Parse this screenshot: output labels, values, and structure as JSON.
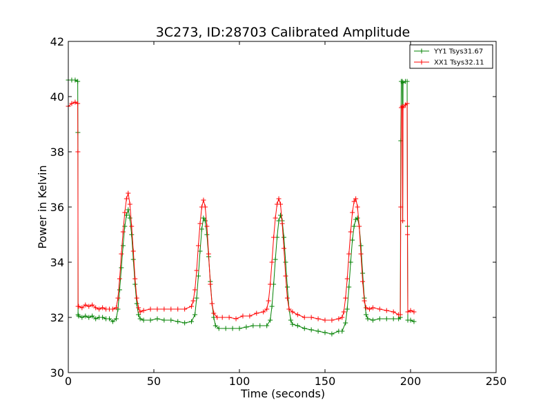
{
  "chart_data": {
    "type": "line",
    "title": "3C273, ID:28703 Calibrated Amplitude",
    "xlabel": "Time (seconds)",
    "ylabel": "Power in Kelvin",
    "xlim": [
      0,
      250
    ],
    "ylim": [
      30,
      42
    ],
    "xticks": [
      "0",
      "50",
      "100",
      "150",
      "200",
      "250"
    ],
    "yticks": [
      "30",
      "32",
      "34",
      "36",
      "38",
      "40",
      "42"
    ],
    "grid": false,
    "legend_position": "top-right",
    "marker": "+",
    "series": [
      {
        "name": "YY1 Tsys31.67",
        "color": "#008000",
        "points": [
          [
            0,
            40.6
          ],
          [
            2,
            40.6
          ],
          [
            4,
            40.6
          ],
          [
            5.5,
            40.55
          ],
          [
            5.6,
            38.7
          ],
          [
            5.7,
            32.1
          ],
          [
            6,
            32.05
          ],
          [
            8,
            32.0
          ],
          [
            10,
            32.05
          ],
          [
            12,
            32.0
          ],
          [
            14,
            32.05
          ],
          [
            16,
            31.95
          ],
          [
            18,
            32.0
          ],
          [
            20,
            32.0
          ],
          [
            22,
            31.95
          ],
          [
            24,
            31.95
          ],
          [
            26,
            31.85
          ],
          [
            28,
            31.95
          ],
          [
            29,
            32.3
          ],
          [
            30,
            33.0
          ],
          [
            31,
            33.8
          ],
          [
            32,
            34.6
          ],
          [
            33,
            35.3
          ],
          [
            34,
            35.7
          ],
          [
            35,
            35.9
          ],
          [
            36,
            35.6
          ],
          [
            37,
            35.0
          ],
          [
            38,
            34.1
          ],
          [
            39,
            33.2
          ],
          [
            40,
            32.5
          ],
          [
            41,
            32.1
          ],
          [
            42,
            31.95
          ],
          [
            44,
            31.9
          ],
          [
            48,
            31.9
          ],
          [
            52,
            31.95
          ],
          [
            56,
            31.9
          ],
          [
            60,
            31.9
          ],
          [
            64,
            31.85
          ],
          [
            68,
            31.8
          ],
          [
            72,
            31.85
          ],
          [
            74,
            32.1
          ],
          [
            75,
            32.7
          ],
          [
            76,
            33.5
          ],
          [
            77,
            34.4
          ],
          [
            78,
            35.2
          ],
          [
            79,
            35.6
          ],
          [
            80,
            35.5
          ],
          [
            81,
            35.0
          ],
          [
            82,
            34.2
          ],
          [
            83,
            33.3
          ],
          [
            84,
            32.5
          ],
          [
            85,
            32.0
          ],
          [
            86,
            31.7
          ],
          [
            88,
            31.6
          ],
          [
            92,
            31.6
          ],
          [
            96,
            31.6
          ],
          [
            100,
            31.6
          ],
          [
            104,
            31.65
          ],
          [
            108,
            31.7
          ],
          [
            112,
            31.7
          ],
          [
            116,
            31.7
          ],
          [
            118,
            31.9
          ],
          [
            119,
            32.4
          ],
          [
            120,
            33.2
          ],
          [
            121,
            34.1
          ],
          [
            122,
            34.9
          ],
          [
            123,
            35.5
          ],
          [
            124,
            35.7
          ],
          [
            125,
            35.5
          ],
          [
            126,
            34.9
          ],
          [
            127,
            34.0
          ],
          [
            128,
            33.1
          ],
          [
            129,
            32.3
          ],
          [
            130,
            31.9
          ],
          [
            131,
            31.75
          ],
          [
            134,
            31.7
          ],
          [
            138,
            31.6
          ],
          [
            142,
            31.55
          ],
          [
            146,
            31.5
          ],
          [
            150,
            31.45
          ],
          [
            154,
            31.4
          ],
          [
            158,
            31.5
          ],
          [
            160,
            31.5
          ],
          [
            162,
            31.8
          ],
          [
            163,
            32.3
          ],
          [
            164,
            33.1
          ],
          [
            165,
            34.0
          ],
          [
            166,
            34.8
          ],
          [
            167,
            35.3
          ],
          [
            168,
            35.55
          ],
          [
            169,
            35.6
          ],
          [
            170,
            35.3
          ],
          [
            171,
            34.6
          ],
          [
            172,
            33.6
          ],
          [
            173,
            32.7
          ],
          [
            174,
            32.1
          ],
          [
            175,
            31.95
          ],
          [
            178,
            31.9
          ],
          [
            182,
            31.95
          ],
          [
            186,
            31.95
          ],
          [
            190,
            31.95
          ],
          [
            193,
            31.95
          ],
          [
            194,
            32.0
          ],
          [
            194.3,
            38.4
          ],
          [
            194.6,
            40.55
          ],
          [
            195.2,
            40.55
          ],
          [
            195.4,
            35.5
          ],
          [
            195.6,
            40.5
          ],
          [
            197,
            40.55
          ],
          [
            198,
            40.55
          ],
          [
            198.2,
            35.3
          ],
          [
            198.4,
            31.9
          ],
          [
            200,
            31.9
          ],
          [
            202,
            31.85
          ]
        ]
      },
      {
        "name": "XX1 Tsys32.11",
        "color": "#ff0000",
        "points": [
          [
            0,
            39.65
          ],
          [
            2,
            39.75
          ],
          [
            4,
            39.8
          ],
          [
            5.5,
            39.75
          ],
          [
            5.6,
            38.0
          ],
          [
            5.7,
            32.4
          ],
          [
            6,
            32.4
          ],
          [
            8,
            32.35
          ],
          [
            10,
            32.45
          ],
          [
            12,
            32.4
          ],
          [
            14,
            32.45
          ],
          [
            16,
            32.35
          ],
          [
            18,
            32.3
          ],
          [
            20,
            32.35
          ],
          [
            22,
            32.3
          ],
          [
            24,
            32.3
          ],
          [
            26,
            32.3
          ],
          [
            28,
            32.35
          ],
          [
            29,
            32.7
          ],
          [
            30,
            33.4
          ],
          [
            31,
            34.3
          ],
          [
            32,
            35.1
          ],
          [
            33,
            35.8
          ],
          [
            34,
            36.3
          ],
          [
            35,
            36.5
          ],
          [
            36,
            36.1
          ],
          [
            37,
            35.3
          ],
          [
            38,
            34.4
          ],
          [
            39,
            33.4
          ],
          [
            40,
            32.7
          ],
          [
            41,
            32.35
          ],
          [
            42,
            32.2
          ],
          [
            44,
            32.25
          ],
          [
            48,
            32.3
          ],
          [
            52,
            32.3
          ],
          [
            56,
            32.3
          ],
          [
            60,
            32.3
          ],
          [
            64,
            32.3
          ],
          [
            68,
            32.3
          ],
          [
            72,
            32.4
          ],
          [
            73,
            32.6
          ],
          [
            74,
            33.0
          ],
          [
            75,
            33.7
          ],
          [
            76,
            34.6
          ],
          [
            77,
            35.4
          ],
          [
            78,
            36.0
          ],
          [
            79,
            36.25
          ],
          [
            80,
            36.0
          ],
          [
            81,
            35.3
          ],
          [
            82,
            34.3
          ],
          [
            83,
            33.2
          ],
          [
            84,
            32.5
          ],
          [
            85,
            32.15
          ],
          [
            87,
            32.0
          ],
          [
            90,
            32.0
          ],
          [
            94,
            32.0
          ],
          [
            98,
            31.95
          ],
          [
            102,
            32.05
          ],
          [
            106,
            32.05
          ],
          [
            110,
            32.15
          ],
          [
            114,
            32.2
          ],
          [
            116,
            32.3
          ],
          [
            117,
            32.6
          ],
          [
            118,
            33.2
          ],
          [
            119,
            34.0
          ],
          [
            120,
            34.9
          ],
          [
            121,
            35.6
          ],
          [
            122,
            36.1
          ],
          [
            123,
            36.3
          ],
          [
            124,
            36.1
          ],
          [
            125,
            35.4
          ],
          [
            126,
            34.5
          ],
          [
            127,
            33.5
          ],
          [
            128,
            32.7
          ],
          [
            129,
            32.3
          ],
          [
            131,
            32.2
          ],
          [
            134,
            32.1
          ],
          [
            138,
            32.0
          ],
          [
            142,
            32.0
          ],
          [
            146,
            31.95
          ],
          [
            150,
            31.9
          ],
          [
            154,
            31.9
          ],
          [
            158,
            31.95
          ],
          [
            160,
            32.0
          ],
          [
            161,
            32.2
          ],
          [
            162,
            32.7
          ],
          [
            163,
            33.4
          ],
          [
            164,
            34.3
          ],
          [
            165,
            35.1
          ],
          [
            166,
            35.8
          ],
          [
            167,
            36.2
          ],
          [
            168,
            36.3
          ],
          [
            169,
            36.0
          ],
          [
            170,
            35.3
          ],
          [
            171,
            34.3
          ],
          [
            172,
            33.3
          ],
          [
            173,
            32.6
          ],
          [
            174,
            32.35
          ],
          [
            176,
            32.3
          ],
          [
            178,
            32.35
          ],
          [
            182,
            32.3
          ],
          [
            186,
            32.25
          ],
          [
            190,
            32.2
          ],
          [
            193,
            32.1
          ],
          [
            194,
            32.1
          ],
          [
            194.3,
            36.0
          ],
          [
            194.6,
            39.6
          ],
          [
            195.2,
            39.65
          ],
          [
            195.4,
            35.5
          ],
          [
            195.6,
            39.6
          ],
          [
            197,
            39.7
          ],
          [
            198,
            39.75
          ],
          [
            198.2,
            35.0
          ],
          [
            198.4,
            32.2
          ],
          [
            200,
            32.25
          ],
          [
            202,
            32.2
          ]
        ]
      }
    ]
  }
}
